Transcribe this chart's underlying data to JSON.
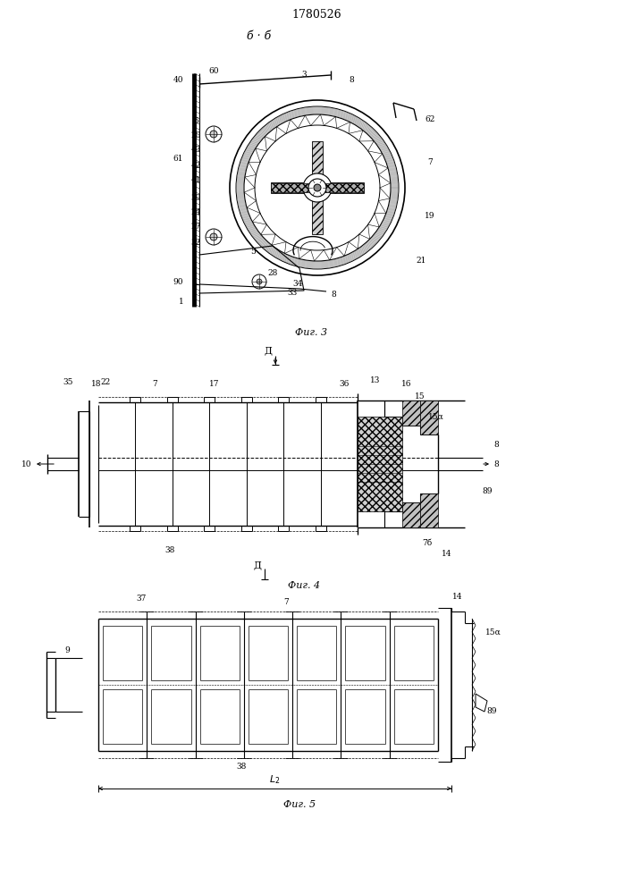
{
  "title": "1780526",
  "fig3_label": "б · б",
  "fig3_caption": "Фиг. 3",
  "fig4_caption": "Фиг. 4",
  "fig5_caption": "Фиг. 5",
  "section_label": "Д",
  "bg_color": "#ffffff",
  "line_color": "#000000"
}
